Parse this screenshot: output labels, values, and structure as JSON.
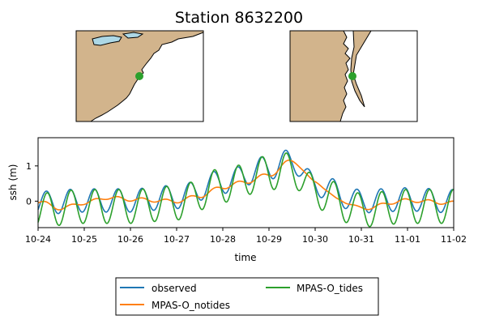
{
  "title": "Station 8632200",
  "maps": [
    {
      "name": "regional-map",
      "land": "#d2b48c",
      "water": "#add8e6",
      "station_color": "#2ca02c"
    },
    {
      "name": "local-map",
      "land": "#d2b48c",
      "water": "#ffffff",
      "station_color": "#2ca02c"
    }
  ],
  "chart_data": {
    "type": "line",
    "xlabel": "time",
    "ylabel": "ssh (m)",
    "x_ticks": [
      "10-24",
      "10-25",
      "10-26",
      "10-27",
      "10-28",
      "10-29",
      "10-30",
      "10-31",
      "11-01",
      "11-02"
    ],
    "y_ticks": [
      0,
      1
    ],
    "xlim": [
      "10-24",
      "11-02"
    ],
    "ylim": [
      -0.75,
      1.8
    ],
    "grid": false,
    "legend_position": "bottom-center",
    "series": [
      {
        "name": "observed",
        "color": "#1f77b4",
        "tide_amp": 0.33,
        "points": [
          [
            "10-24",
            -0.05
          ],
          [
            "10-25",
            0.02
          ],
          [
            "10-26",
            0.02
          ],
          [
            "10-27",
            0.12
          ],
          [
            "10-28",
            0.55
          ],
          [
            "10-29",
            0.95
          ],
          [
            "10-29T12",
            1.15
          ],
          [
            "10-30",
            0.45
          ],
          [
            "10-31",
            0.0
          ],
          [
            "11-01",
            0.05
          ],
          [
            "11-02",
            0.0
          ]
        ]
      },
      {
        "name": "MPAS-O_notides",
        "color": "#ff7f0e",
        "tide_amp": 0.05,
        "points": [
          [
            "10-24",
            -0.02
          ],
          [
            "10-24T12",
            -0.2
          ],
          [
            "10-25",
            -0.05
          ],
          [
            "10-25T12",
            0.1
          ],
          [
            "10-26",
            0.05
          ],
          [
            "10-27",
            0.0
          ],
          [
            "10-27T12",
            0.15
          ],
          [
            "10-28",
            0.4
          ],
          [
            "10-28T12",
            0.55
          ],
          [
            "10-29",
            0.75
          ],
          [
            "10-29T12",
            1.15
          ],
          [
            "10-30",
            0.55
          ],
          [
            "10-30T12",
            0.05
          ],
          [
            "10-31",
            -0.2
          ],
          [
            "11-01",
            0.02
          ],
          [
            "11-02",
            -0.05
          ]
        ]
      },
      {
        "name": "MPAS-O_tides",
        "color": "#2ca02c",
        "tide_amp": 0.48,
        "points": [
          [
            "10-24",
            -0.25
          ],
          [
            "10-25",
            -0.15
          ],
          [
            "10-26",
            -0.15
          ],
          [
            "10-27",
            -0.05
          ],
          [
            "10-28",
            0.45
          ],
          [
            "10-29",
            0.8
          ],
          [
            "10-29T12",
            0.9
          ],
          [
            "10-30",
            0.25
          ],
          [
            "10-31",
            -0.25
          ],
          [
            "11-01",
            -0.15
          ],
          [
            "11-02",
            -0.15
          ]
        ]
      }
    ]
  }
}
